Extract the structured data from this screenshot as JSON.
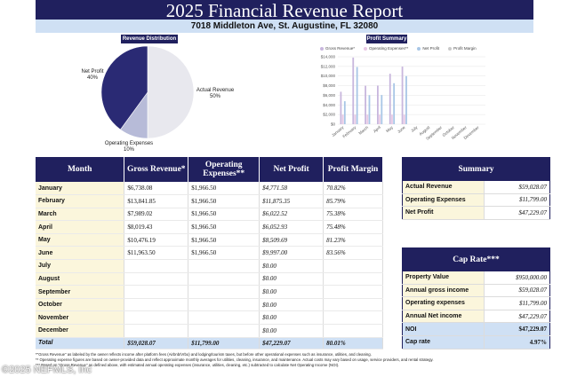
{
  "report": {
    "title": "2025 Financial Revenue Report",
    "address": "7018 Middleton Ave, St. Augustine, FL 32080"
  },
  "sections": {
    "revenue_distribution": "Revenue Distribution",
    "profit_summary": "Profit Summary"
  },
  "colors": {
    "navy": "#20205e",
    "light_blue": "#cfe0f4",
    "cream": "#fbf6dc",
    "gross_revenue": "#c8b6dd",
    "operating_expenses": "#e9c8e4",
    "net_profit": "#a8c6e6",
    "profit_margin": "#c9c9c9"
  },
  "chart_data": [
    {
      "type": "pie",
      "labels": [
        "Net Profit",
        "Actual Revenue",
        "Operating Expenses"
      ],
      "values": [
        40,
        50,
        10
      ],
      "display": [
        "Net Profit\n40%",
        "Actual Revenue\n50%",
        "Operating Expenses\n10%"
      ],
      "colors": [
        "#2a2a74",
        "#e8e8ee",
        "#b7bbd8"
      ]
    },
    {
      "type": "bar",
      "categories": [
        "January",
        "February",
        "March",
        "April",
        "May",
        "June",
        "July",
        "August",
        "September",
        "October",
        "November",
        "December"
      ],
      "series": [
        {
          "name": "Gross Revenue*",
          "values": [
            6738.08,
            13841.85,
            7989.02,
            8019.43,
            10476.19,
            11963.5,
            0,
            0,
            0,
            0,
            0,
            0
          ]
        },
        {
          "name": "Operating Expenses**",
          "values": [
            1966.5,
            1966.5,
            1966.5,
            1966.5,
            1966.5,
            1966.5,
            0,
            0,
            0,
            0,
            0,
            0
          ]
        },
        {
          "name": "Net Profit",
          "values": [
            4771.58,
            11875.35,
            6022.52,
            6052.93,
            8509.69,
            9997.0,
            0,
            0,
            0,
            0,
            0,
            0
          ]
        },
        {
          "name": "Profit Margin",
          "values": [
            70.82,
            85.79,
            75.38,
            75.48,
            81.23,
            83.56,
            0,
            0,
            0,
            0,
            0,
            0
          ]
        }
      ],
      "yticks": [
        "$0",
        "$2,000",
        "$4,000",
        "$6,000",
        "$8,000",
        "$10,000",
        "$12,000",
        "$14,000"
      ],
      "ylim": [
        0,
        14000
      ],
      "grid": true,
      "legend": "top"
    }
  ],
  "main_table": {
    "headers": [
      "Month",
      "Gross Revenue*",
      "Operating Expenses**",
      "Net Profit",
      "Profit Margin"
    ],
    "rows": [
      [
        "January",
        "$6,738.08",
        "$1,966.50",
        "$4,771.58",
        "70.82%"
      ],
      [
        "February",
        "$13,841.85",
        "$1,966.50",
        "$11,875.35",
        "85.79%"
      ],
      [
        "March",
        "$7,989.02",
        "$1,966.50",
        "$6,022.52",
        "75.38%"
      ],
      [
        "April",
        "$8,019.43",
        "$1,966.50",
        "$6,052.93",
        "75.48%"
      ],
      [
        "May",
        "$10,476.19",
        "$1,966.50",
        "$8,509.69",
        "81.23%"
      ],
      [
        "June",
        "$11,963.50",
        "$1,966.50",
        "$9,997.00",
        "83.56%"
      ],
      [
        "July",
        "",
        "",
        "$0.00",
        ""
      ],
      [
        "August",
        "",
        "",
        "$0.00",
        ""
      ],
      [
        "September",
        "",
        "",
        "$0.00",
        ""
      ],
      [
        "October",
        "",
        "",
        "$0.00",
        ""
      ],
      [
        "November",
        "",
        "",
        "$0.00",
        ""
      ],
      [
        "December",
        "",
        "",
        "$0.00",
        ""
      ]
    ],
    "total": [
      "Total",
      "$59,028.07",
      "$11,799.00",
      "$47,229.07",
      "80.01%"
    ]
  },
  "summary": {
    "title": "Summary",
    "rows": [
      {
        "label": "Actual Revenue",
        "value": "$59,028.07"
      },
      {
        "label": "Operating Expenses",
        "value": "$11,799.00"
      },
      {
        "label": "Net Profit",
        "value": "$47,229.07"
      }
    ]
  },
  "cap_rate": {
    "title": "Cap Rate***",
    "rows": [
      {
        "label": "Property Value",
        "value": "$950,000.00"
      },
      {
        "label": "Annual gross income",
        "value": "$59,028.07"
      },
      {
        "label": "Operating expenses",
        "value": "$11,799.00"
      },
      {
        "label": "Annual Net income",
        "value": "$47,229.07"
      },
      {
        "label": "NOI",
        "value": "$47,229.07"
      },
      {
        "label": "Cap rate",
        "value": "4.97%"
      }
    ]
  },
  "footnotes": [
    "*\"Gross Revenue\" as labeled by the owner reflects income after platform fees (Airbnb/Vrbo) and lodging/tourism taxes, but before other operational expenses such as insurance, utilities, and cleaning.",
    "** Operating expense figures are based on owner-provided data and reflect approximate monthly averages for utilities, cleaning, insurance, and maintenance. Actual costs may vary based on usage, service providers, and rental strategy.",
    "*** Based on \"Gross Revenue\" as defined above, with estimated annual operating expenses (insurance, utilities, cleaning, etc.) subtracted to calculate Net Operating Income (NOI)."
  ],
  "watermark": "©2025 NEFMLS, Inc"
}
